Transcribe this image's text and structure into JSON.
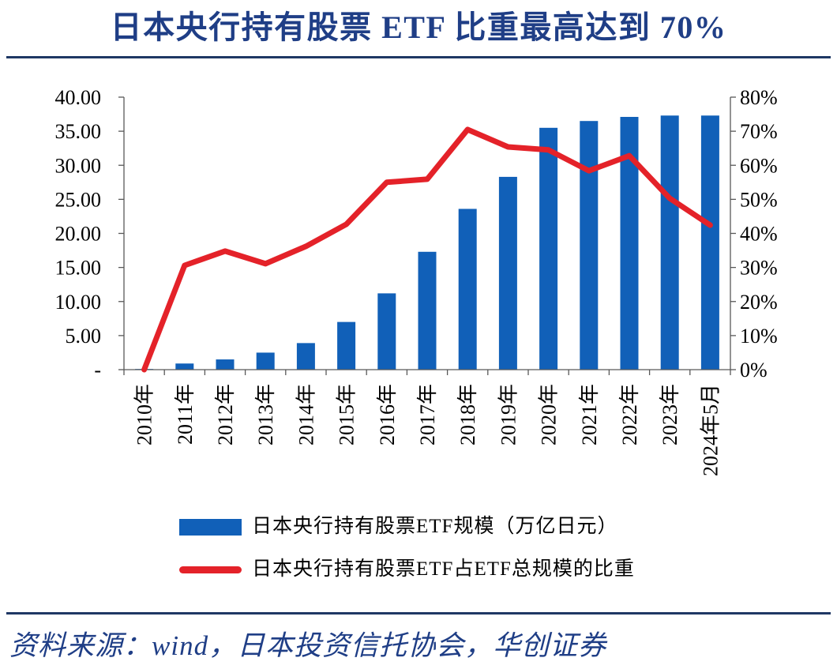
{
  "colors": {
    "title": "#1f3e86",
    "rule": "#1f3864",
    "bar": "#1160b8",
    "line": "#e42229",
    "axis": "#595959",
    "source": "#1f3e86"
  },
  "source": "资料来源：wind，日本投资信托协会，华创证券",
  "chart_data": {
    "type": "bar",
    "title": "日本央行持有股票 ETF 比重最高达到 70%",
    "categories": [
      "2010年",
      "2011年",
      "2012年",
      "2013年",
      "2014年",
      "2015年",
      "2016年",
      "2017年",
      "2018年",
      "2019年",
      "2020年",
      "2021年",
      "2022年",
      "2023年",
      "2024年5月"
    ],
    "series": [
      {
        "name": "日本央行持有股票ETF规模（万亿日元）",
        "type": "bar",
        "axis": "left",
        "values": [
          0.1,
          0.9,
          1.5,
          2.5,
          3.9,
          7.0,
          11.2,
          17.3,
          23.6,
          28.3,
          35.5,
          36.5,
          37.1,
          37.3,
          37.3
        ]
      },
      {
        "name": "日本央行持有股票ETF占ETF总规模的比重",
        "type": "line",
        "axis": "right",
        "values": [
          0,
          30.6,
          34.8,
          31.1,
          36.2,
          42.7,
          55.0,
          55.9,
          70.5,
          65.4,
          64.5,
          58.4,
          62.8,
          50.3,
          42.4
        ]
      }
    ],
    "y_left": {
      "range": [
        0,
        40
      ],
      "ticks": [
        0,
        5,
        10,
        15,
        20,
        25,
        30,
        35,
        40
      ],
      "tick_labels": [
        "-",
        "5.00",
        "10.00",
        "15.00",
        "20.00",
        "25.00",
        "30.00",
        "35.00",
        "40.00"
      ]
    },
    "y_right": {
      "range": [
        0,
        80
      ],
      "ticks": [
        0,
        10,
        20,
        30,
        40,
        50,
        60,
        70,
        80
      ],
      "tick_labels": [
        "0%",
        "10%",
        "20%",
        "30%",
        "40%",
        "50%",
        "60%",
        "70%",
        "80%"
      ]
    },
    "grid": false,
    "legend_position": "bottom"
  }
}
